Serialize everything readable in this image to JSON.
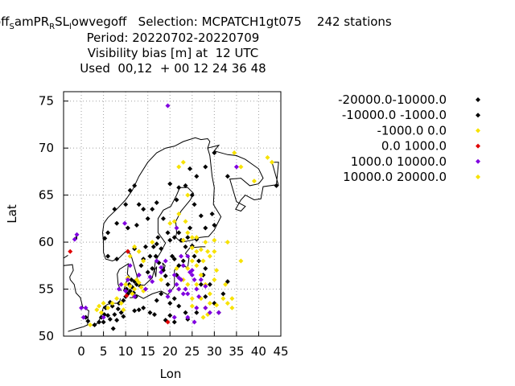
{
  "title": {
    "line1_parts": [
      "off",
      "S",
      "amPR",
      "R",
      "SL",
      "l",
      "owvegoff   Selection: MCPATCH1gt075    242 stations"
    ],
    "line2": "Period: 20220702-20220709",
    "line3": "Visibility bias [m] at  12 UTC",
    "line4": "Used  00,12  + 00 12 24 36 48"
  },
  "chart_data": {
    "type": "scatter",
    "xlabel": "Lon",
    "ylabel": "Lat",
    "xlim": [
      -4,
      45
    ],
    "ylim": [
      50,
      76
    ],
    "xticks": [
      "0",
      "5",
      "10",
      "15",
      "20",
      "25",
      "30",
      "35",
      "40",
      "45"
    ],
    "xtick_values": [
      0,
      5,
      10,
      15,
      20,
      25,
      30,
      35,
      40,
      45
    ],
    "yticks": [
      "50",
      "55",
      "60",
      "65",
      "70",
      "75"
    ],
    "ytick_values": [
      50,
      55,
      60,
      65,
      70,
      75
    ],
    "grid": true,
    "legend_placement": "right",
    "series": [
      {
        "name": "-20000.0-10000.0",
        "color": "#000000",
        "points": []
      },
      {
        "name": "-10000.0 -1000.0",
        "color": "#000000",
        "points": [
          [
            1,
            52
          ],
          [
            1.5,
            51.6
          ],
          [
            3,
            51.2
          ],
          [
            4,
            51.5
          ],
          [
            4.5,
            52
          ],
          [
            5,
            51.5
          ],
          [
            5.2,
            52.3
          ],
          [
            5.5,
            53
          ],
          [
            6,
            52.2
          ],
          [
            6.5,
            51.8
          ],
          [
            7,
            53.2
          ],
          [
            7.5,
            52.3
          ],
          [
            8,
            51.7
          ],
          [
            8.5,
            53.5
          ],
          [
            9,
            52.5
          ],
          [
            9.5,
            53.8
          ],
          [
            10,
            54.2
          ],
          [
            10.2,
            55
          ],
          [
            10.5,
            54.5
          ],
          [
            10.8,
            55.5
          ],
          [
            11,
            54.8
          ],
          [
            11.3,
            56
          ],
          [
            11.5,
            55.2
          ],
          [
            11.8,
            54.6
          ],
          [
            12,
            55.8
          ],
          [
            12.3,
            54.2
          ],
          [
            12.5,
            55.5
          ],
          [
            13,
            56.5
          ],
          [
            13.3,
            55.3
          ],
          [
            13.5,
            57.5
          ],
          [
            14,
            58.2
          ],
          [
            14.5,
            59.5
          ],
          [
            15,
            56.8
          ],
          [
            15.5,
            58.5
          ],
          [
            16,
            57.2
          ],
          [
            16.3,
            59.5
          ],
          [
            16.8,
            58.5
          ],
          [
            17,
            59.8
          ],
          [
            17.3,
            60.5
          ],
          [
            17.5,
            57.8
          ],
          [
            18,
            59.3
          ],
          [
            18.5,
            57
          ],
          [
            19,
            56.4
          ],
          [
            19.5,
            55.5
          ],
          [
            20,
            60.2
          ],
          [
            20.5,
            58.5
          ],
          [
            21,
            60.5
          ],
          [
            21.5,
            56.5
          ],
          [
            22,
            61
          ],
          [
            22.5,
            60.2
          ],
          [
            23,
            58
          ],
          [
            23.5,
            59.5
          ],
          [
            24,
            60.5
          ],
          [
            24.5,
            61.5
          ],
          [
            25,
            59.6
          ],
          [
            25.5,
            58.5
          ],
          [
            26,
            60.3
          ],
          [
            26.5,
            58
          ],
          [
            27,
            55.5
          ],
          [
            27.5,
            56.5
          ],
          [
            28,
            57.2
          ],
          [
            12,
            59.3
          ],
          [
            10.5,
            59
          ],
          [
            8,
            58.2
          ],
          [
            6,
            58.5
          ],
          [
            5.3,
            60.4
          ],
          [
            6,
            61
          ],
          [
            8,
            62
          ],
          [
            7.5,
            63.5
          ],
          [
            10,
            64
          ],
          [
            11,
            65.5
          ],
          [
            12,
            66
          ],
          [
            13,
            64
          ],
          [
            14,
            63.5
          ],
          [
            16,
            63.5
          ],
          [
            17,
            64.2
          ],
          [
            15,
            62.5
          ],
          [
            12.5,
            61.8
          ],
          [
            10.5,
            61.5
          ],
          [
            19.5,
            61
          ],
          [
            18.5,
            62.5
          ],
          [
            20,
            66.2
          ],
          [
            21.5,
            64.5
          ],
          [
            22,
            65.8
          ],
          [
            23.5,
            66
          ],
          [
            25,
            65
          ],
          [
            25.5,
            64
          ],
          [
            27,
            62.8
          ],
          [
            28,
            61.5
          ],
          [
            29.5,
            63
          ],
          [
            30,
            61.8
          ],
          [
            24.5,
            67.8
          ],
          [
            26,
            67
          ],
          [
            28,
            68
          ],
          [
            30,
            69.5
          ],
          [
            33,
            67
          ],
          [
            44,
            66
          ],
          [
            21,
            58.2
          ],
          [
            22,
            57.5
          ],
          [
            18,
            54.5
          ],
          [
            17,
            53.8
          ],
          [
            16.5,
            52.3
          ],
          [
            15.5,
            52.5
          ],
          [
            14,
            53
          ],
          [
            13,
            52.8
          ],
          [
            20,
            53.5
          ],
          [
            21,
            54
          ],
          [
            22,
            53.2
          ],
          [
            23.5,
            52.5
          ],
          [
            24,
            51.8
          ],
          [
            21,
            51.5
          ],
          [
            20,
            52.2
          ],
          [
            19,
            51.7
          ],
          [
            26,
            52.5
          ],
          [
            28,
            54.2
          ],
          [
            29,
            55.5
          ],
          [
            30,
            53.5
          ],
          [
            31,
            52.5
          ],
          [
            32,
            54.5
          ],
          [
            33,
            55.8
          ],
          [
            12,
            52.7
          ],
          [
            9.5,
            52.1
          ],
          [
            8.3,
            52.9
          ],
          [
            6.5,
            53.6
          ],
          [
            7.2,
            50.8
          ]
        ]
      },
      {
        "name": "-1000.0 0.0",
        "color": "#f7e200",
        "points": [
          [
            2,
            51.2
          ],
          [
            3.5,
            52.8
          ],
          [
            4,
            53.2
          ],
          [
            4.5,
            52.5
          ],
          [
            5,
            53.5
          ],
          [
            6,
            53
          ],
          [
            7,
            53.5
          ],
          [
            8,
            54
          ],
          [
            9,
            53.5
          ],
          [
            9.5,
            52.8
          ],
          [
            10,
            55.5
          ],
          [
            10.5,
            56.2
          ],
          [
            11,
            55.3
          ],
          [
            11.5,
            54.5
          ],
          [
            12,
            55
          ],
          [
            12.5,
            56
          ],
          [
            13,
            55.7
          ],
          [
            13.5,
            55.2
          ],
          [
            14,
            54.8
          ],
          [
            11,
            58.5
          ],
          [
            12,
            59.5
          ],
          [
            13,
            59
          ],
          [
            14,
            58
          ],
          [
            18,
            56
          ],
          [
            16,
            60
          ],
          [
            20,
            62
          ],
          [
            21,
            62.2
          ],
          [
            22,
            63
          ],
          [
            23.5,
            62.2
          ],
          [
            24,
            65
          ],
          [
            25,
            59.4
          ],
          [
            26,
            59
          ],
          [
            27,
            59.2
          ],
          [
            28,
            60
          ],
          [
            28.5,
            59
          ],
          [
            24,
            57.2
          ],
          [
            25,
            58
          ],
          [
            26,
            57.5
          ],
          [
            27,
            56.5
          ],
          [
            28,
            55.5
          ],
          [
            29,
            54.5
          ],
          [
            30,
            56
          ],
          [
            29,
            53.5
          ],
          [
            28,
            53
          ],
          [
            27,
            54
          ],
          [
            26,
            55.5
          ],
          [
            25,
            54
          ],
          [
            27.5,
            52
          ],
          [
            28.5,
            52.3
          ],
          [
            30.5,
            53.3
          ],
          [
            32,
            54
          ],
          [
            32.5,
            55.5
          ],
          [
            33,
            53.5
          ],
          [
            34,
            54
          ],
          [
            34,
            53
          ],
          [
            36,
            58
          ],
          [
            34.5,
            69.5
          ],
          [
            36,
            68
          ],
          [
            39,
            66.5
          ],
          [
            42,
            69
          ],
          [
            43,
            68.5
          ],
          [
            22,
            68
          ],
          [
            23,
            68.5
          ],
          [
            25,
            60.5
          ],
          [
            23,
            60.2
          ],
          [
            24,
            61
          ],
          [
            26,
            60.5
          ],
          [
            27.5,
            58
          ],
          [
            29,
            58.5
          ],
          [
            30,
            59
          ],
          [
            30.5,
            57
          ],
          [
            25,
            53.2
          ],
          [
            22,
            55
          ],
          [
            23,
            56
          ],
          [
            24,
            55.5
          ],
          [
            21.5,
            57.2
          ],
          [
            33,
            60
          ],
          [
            30,
            60.2
          ]
        ]
      },
      {
        "name": "0.0 1000.0",
        "color": "#e00000",
        "points": [
          [
            -2.5,
            59
          ],
          [
            10.5,
            59
          ],
          [
            19.5,
            51.5
          ],
          [
            10.2,
            54.3
          ]
        ]
      },
      {
        "name": "1000.0 10000.0",
        "color": "#8000e0",
        "points": [
          [
            19.5,
            74.5
          ],
          [
            -1.5,
            60.3
          ],
          [
            -1,
            60.8
          ],
          [
            0,
            53
          ],
          [
            0.5,
            52
          ],
          [
            1,
            53
          ],
          [
            5,
            52
          ],
          [
            8.5,
            55
          ],
          [
            9,
            55.5
          ],
          [
            9.8,
            62
          ],
          [
            10,
            54.8
          ],
          [
            10.5,
            56
          ],
          [
            11,
            57.5
          ],
          [
            12,
            54.2
          ],
          [
            13,
            56.5
          ],
          [
            14.5,
            55
          ],
          [
            15.5,
            56.3
          ],
          [
            16,
            55.8
          ],
          [
            17,
            58
          ],
          [
            18,
            56.8
          ],
          [
            19.5,
            54.2
          ],
          [
            20,
            54.8
          ],
          [
            21,
            56.5
          ],
          [
            21.5,
            55.5
          ],
          [
            22,
            55
          ],
          [
            22.5,
            56
          ],
          [
            23,
            54.5
          ],
          [
            23.5,
            55
          ],
          [
            24,
            54.5
          ],
          [
            24.5,
            56.8
          ],
          [
            25,
            56.5
          ],
          [
            25.5,
            56
          ],
          [
            26,
            55
          ],
          [
            26.5,
            54.2
          ],
          [
            27,
            56
          ],
          [
            28,
            55.3
          ],
          [
            29,
            52.5
          ],
          [
            28,
            53
          ],
          [
            31,
            52.5
          ],
          [
            35,
            68
          ],
          [
            21.5,
            61.5
          ],
          [
            22.5,
            58.5
          ],
          [
            24,
            58.5
          ],
          [
            25,
            57
          ],
          [
            18,
            57.3
          ],
          [
            19,
            58
          ],
          [
            25.5,
            51.5
          ],
          [
            24,
            52
          ],
          [
            26,
            53
          ],
          [
            22,
            56.2
          ],
          [
            23,
            57.5
          ],
          [
            21,
            52
          ]
        ]
      },
      {
        "name": "10000.0 20000.0",
        "color": "#f7e200",
        "points": []
      }
    ]
  }
}
